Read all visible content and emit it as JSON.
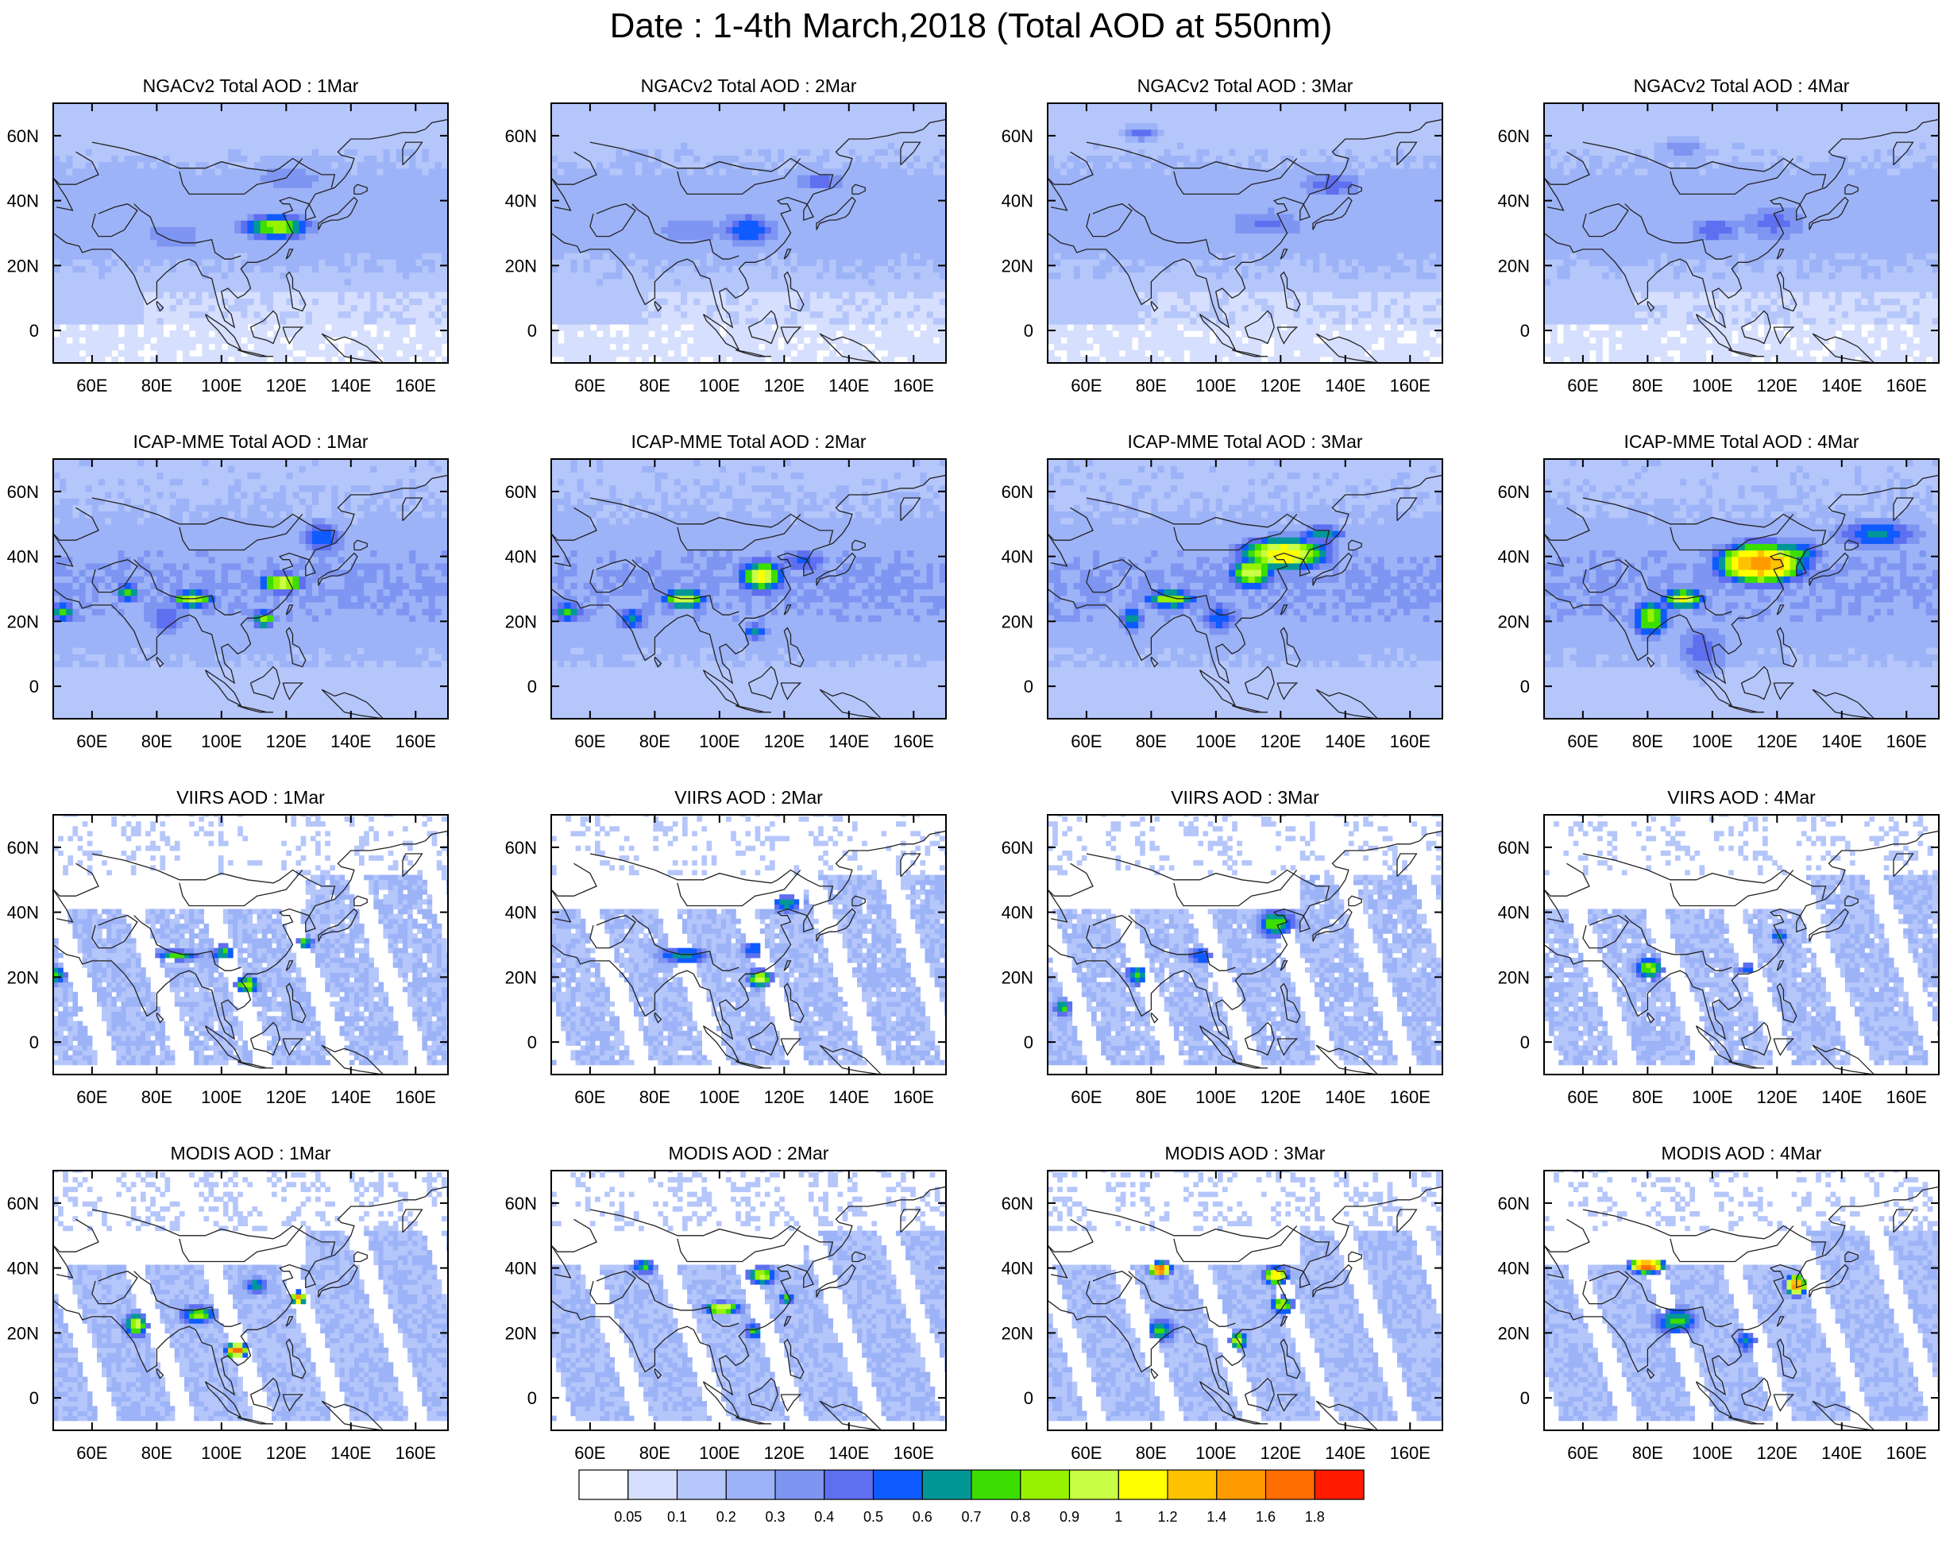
{
  "title": "Date : 1-4th March,2018 (Total AOD at 550nm)",
  "axes": {
    "lon_ticks": [
      "60E",
      "80E",
      "100E",
      "120E",
      "140E",
      "160E"
    ],
    "lat_ticks": [
      "60N",
      "40N",
      "20N",
      "0"
    ],
    "lon_values": [
      60,
      80,
      100,
      120,
      140,
      160
    ],
    "lat_values": [
      60,
      40,
      20,
      0
    ],
    "xlim": [
      48,
      170
    ],
    "ylim": [
      -10,
      70
    ]
  },
  "colorbar": {
    "labels": [
      "0.05",
      "0.1",
      "0.2",
      "0.3",
      "0.4",
      "0.5",
      "0.6",
      "0.7",
      "0.8",
      "0.9",
      "1",
      "1.2",
      "1.4",
      "1.6",
      "1.8"
    ],
    "colors": [
      "#ffffff",
      "#d6dffd",
      "#b5c6fb",
      "#9db3f7",
      "#7e96f2",
      "#5e6ff0",
      "#0f5bff",
      "#029797",
      "#3bde00",
      "#96f200",
      "#c8ff44",
      "#ffff00",
      "#ffc200",
      "#ff9b00",
      "#ff6e00",
      "#ff1a00"
    ]
  },
  "chart_data": [
    {
      "type": "heatmap",
      "title": "NGACv2 Total AOD : 1Mar",
      "product": "NGACv2",
      "day": 1
    },
    {
      "type": "heatmap",
      "title": "NGACv2 Total AOD : 2Mar",
      "product": "NGACv2",
      "day": 2
    },
    {
      "type": "heatmap",
      "title": "NGACv2 Total AOD : 3Mar",
      "product": "NGACv2",
      "day": 3
    },
    {
      "type": "heatmap",
      "title": "NGACv2 Total AOD : 4Mar",
      "product": "NGACv2",
      "day": 4
    },
    {
      "type": "heatmap",
      "title": "ICAP-MME Total AOD : 1Mar",
      "product": "ICAP-MME",
      "day": 1
    },
    {
      "type": "heatmap",
      "title": "ICAP-MME Total AOD : 2Mar",
      "product": "ICAP-MME",
      "day": 2
    },
    {
      "type": "heatmap",
      "title": "ICAP-MME Total AOD : 3Mar",
      "product": "ICAP-MME",
      "day": 3
    },
    {
      "type": "heatmap",
      "title": "ICAP-MME Total AOD : 4Mar",
      "product": "ICAP-MME",
      "day": 4
    },
    {
      "type": "heatmap",
      "title": "VIIRS AOD : 1Mar",
      "product": "VIIRS",
      "day": 1
    },
    {
      "type": "heatmap",
      "title": "VIIRS AOD : 2Mar",
      "product": "VIIRS",
      "day": 2
    },
    {
      "type": "heatmap",
      "title": "VIIRS AOD : 3Mar",
      "product": "VIIRS",
      "day": 3
    },
    {
      "type": "heatmap",
      "title": "VIIRS AOD : 4Mar",
      "product": "VIIRS",
      "day": 4
    },
    {
      "type": "heatmap",
      "title": "MODIS AOD : 1Mar",
      "product": "MODIS",
      "day": 1
    },
    {
      "type": "heatmap",
      "title": "MODIS AOD : 2Mar",
      "product": "MODIS",
      "day": 2
    },
    {
      "type": "heatmap",
      "title": "MODIS AOD : 3Mar",
      "product": "MODIS",
      "day": 3
    },
    {
      "type": "heatmap",
      "title": "MODIS AOD : 4Mar",
      "product": "MODIS",
      "day": 4
    }
  ]
}
